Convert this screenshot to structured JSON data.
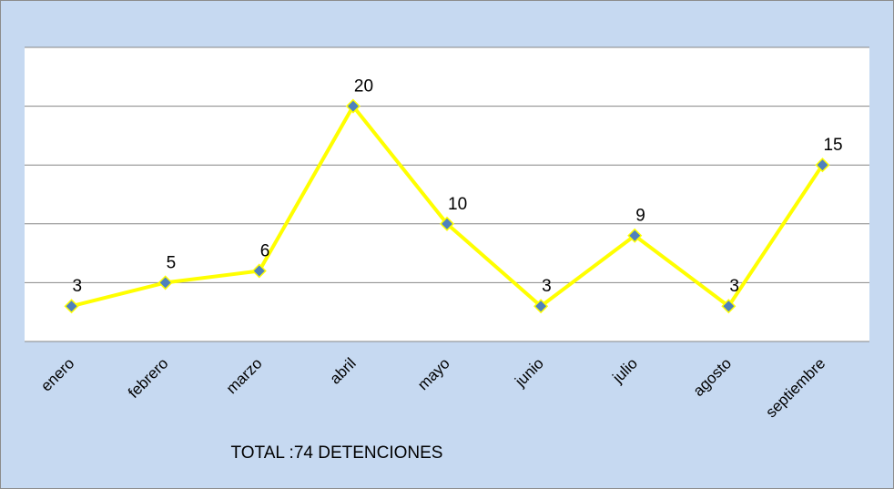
{
  "chart_data": {
    "type": "line",
    "title": "TOTAL :74 DETENCIONES",
    "categories": [
      "enero",
      "febrero",
      "marzo",
      "abril",
      "mayo",
      "junio",
      "julio",
      "agosto",
      "septiembre"
    ],
    "values": [
      3,
      5,
      6,
      20,
      10,
      3,
      9,
      3,
      15
    ],
    "color": "#ffff00",
    "marker_color": "#4f81bd",
    "ylim": [
      0,
      25
    ],
    "yticks": [
      0,
      5,
      10,
      15,
      20,
      25
    ],
    "grid": true
  }
}
